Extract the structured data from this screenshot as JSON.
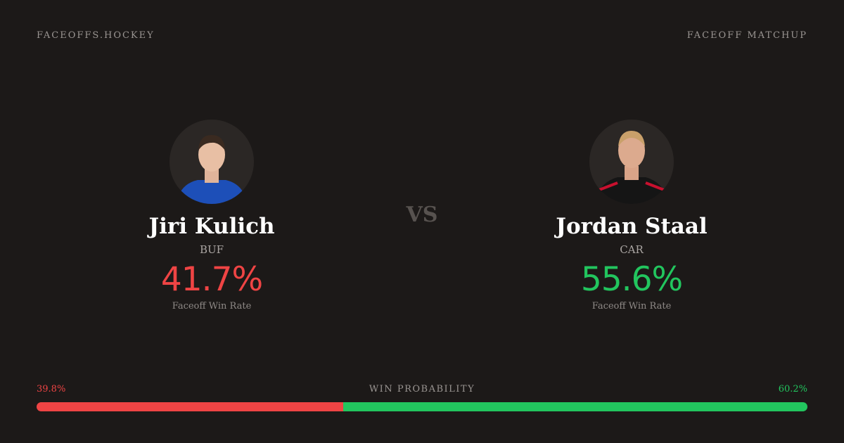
{
  "header": {
    "brand": "FACEOFFS.HOCKEY",
    "tag": "FACEOFF MATCHUP"
  },
  "vs": "VS",
  "players": [
    {
      "name": "Jiri Kulich",
      "team": "BUF",
      "win_rate": "41.7%",
      "win_rate_label": "Faceoff Win Rate",
      "color": "#ef4444"
    },
    {
      "name": "Jordan Staal",
      "team": "CAR",
      "win_rate": "55.6%",
      "win_rate_label": "Faceoff Win Rate",
      "color": "#22c55e"
    }
  ],
  "win_probability": {
    "title": "WIN PROBABILITY",
    "values": [
      39.8,
      60.2
    ],
    "value_labels": [
      "39.8%",
      "60.2%"
    ],
    "colors": [
      "#ef4444",
      "#22c55e"
    ]
  }
}
